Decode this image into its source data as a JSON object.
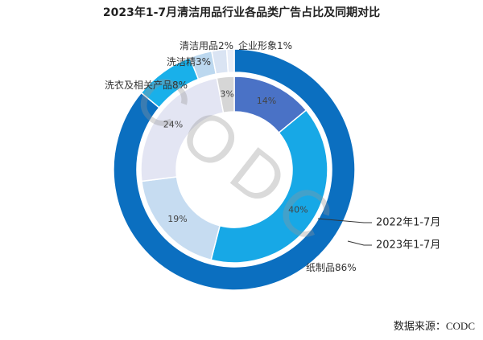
{
  "chart_data": {
    "type": "nested-donut",
    "title": "2023年1-7月清洁用品行业各品类广告占比及同期对比",
    "series": [
      {
        "name": "2022年1-7月",
        "values": [
          14,
          40,
          19,
          24,
          3
        ],
        "value_labels": [
          "14%",
          "40%",
          "19%",
          "24%",
          "3%"
        ],
        "colors": [
          "#4a72c6",
          "#17a8e6",
          "#c6dcf1",
          "#e3e5f3",
          "#d6d6d6"
        ]
      },
      {
        "name": "2023年1-7月",
        "categories": [
          "纸制品",
          "洗衣及相关产品",
          "洗洁精",
          "清洁用品",
          "企业形象"
        ],
        "values": [
          86,
          8,
          3,
          2,
          1
        ],
        "value_labels": [
          "86%",
          "8%",
          "3%",
          "2%",
          "1%"
        ],
        "colors": [
          "#0b6fc0",
          "#19b0ea",
          "#bcd8ef",
          "#dae4f3",
          "#e9eef8"
        ]
      }
    ],
    "watermark": "CODC",
    "source": "数据来源：CODC"
  }
}
